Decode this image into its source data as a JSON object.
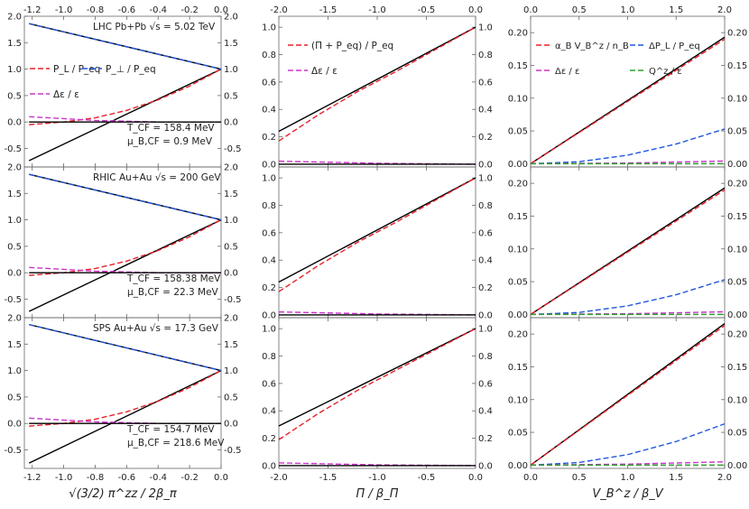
{
  "chart_data": [
    {
      "type": "line",
      "column": "left",
      "system": "LHC Pb+Pb",
      "energy": "5.02 TeV",
      "T_CF": "T_CF = 158.4 MeV",
      "mu_B": "μ_B,CF = 0.9 MeV",
      "xlim": [
        -1.25,
        0.0
      ],
      "ylim": [
        -0.85,
        2.0
      ],
      "legend": [
        "P_L / P_eq",
        "P_⊥ / P_eq",
        "Δε / ε"
      ],
      "series": [
        {
          "name": "P_L/P_eq exact",
          "color": "#000000",
          "dash": "solid",
          "x": [
            -1.22,
            0
          ],
          "y": [
            -0.73,
            1.0
          ]
        },
        {
          "name": "P_L/P_eq",
          "color": "#e8202b",
          "dash": "dashed",
          "x": [
            -1.22,
            -1.0,
            -0.8,
            -0.6,
            -0.4,
            -0.2,
            0
          ],
          "y": [
            -0.05,
            0.0,
            0.08,
            0.22,
            0.42,
            0.68,
            1.0
          ]
        },
        {
          "name": "P_perp/P_eq exact",
          "color": "#000000",
          "dash": "solid",
          "x": [
            -1.22,
            0
          ],
          "y": [
            1.86,
            1.0
          ]
        },
        {
          "name": "P_perp/P_eq",
          "color": "#2157e0",
          "dash": "dashed",
          "x": [
            -1.22,
            0
          ],
          "y": [
            1.86,
            1.0
          ]
        },
        {
          "name": "Δε/ε",
          "color": "#cc33cc",
          "dash": "dashed",
          "x": [
            -1.22,
            -0.8,
            -0.4,
            0
          ],
          "y": [
            0.1,
            0.03,
            0.0,
            0.0
          ]
        },
        {
          "name": "zero",
          "color": "#000000",
          "dash": "solid",
          "x": [
            -1.22,
            0
          ],
          "y": [
            0.0,
            0.0
          ]
        }
      ]
    },
    {
      "type": "line",
      "column": "left",
      "system": "RHIC Au+Au",
      "energy": "200 GeV",
      "T_CF": "T_CF = 158.38 MeV",
      "mu_B": "μ_B,CF = 22.3 MeV",
      "xlim": [
        -1.25,
        0.0
      ],
      "ylim": [
        -0.85,
        2.0
      ],
      "series": [
        {
          "name": "P_L/P_eq exact",
          "color": "#000000",
          "dash": "solid",
          "x": [
            -1.22,
            0
          ],
          "y": [
            -0.73,
            1.0
          ]
        },
        {
          "name": "P_L/P_eq",
          "color": "#e8202b",
          "dash": "dashed",
          "x": [
            -1.22,
            -1.0,
            -0.8,
            -0.6,
            -0.4,
            -0.2,
            0
          ],
          "y": [
            -0.05,
            0.0,
            0.08,
            0.22,
            0.42,
            0.68,
            1.0
          ]
        },
        {
          "name": "P_perp/P_eq exact",
          "color": "#000000",
          "dash": "solid",
          "x": [
            -1.22,
            0
          ],
          "y": [
            1.86,
            1.0
          ]
        },
        {
          "name": "P_perp/P_eq",
          "color": "#2157e0",
          "dash": "dashed",
          "x": [
            -1.22,
            0
          ],
          "y": [
            1.86,
            1.0
          ]
        },
        {
          "name": "Δε/ε",
          "color": "#cc33cc",
          "dash": "dashed",
          "x": [
            -1.22,
            -0.8,
            -0.4,
            0
          ],
          "y": [
            0.1,
            0.03,
            0.0,
            0.0
          ]
        },
        {
          "name": "zero",
          "color": "#000000",
          "dash": "solid",
          "x": [
            -1.22,
            0
          ],
          "y": [
            0.0,
            0.0
          ]
        }
      ]
    },
    {
      "type": "line",
      "column": "left",
      "system": "SPS Au+Au",
      "energy": "17.3 GeV",
      "T_CF": "T_CF = 154.7 MeV",
      "mu_B": "μ_B,CF = 218.6 MeV",
      "xlim": [
        -1.25,
        0.0
      ],
      "ylim": [
        -0.85,
        2.0
      ],
      "series": [
        {
          "name": "P_L/P_eq exact",
          "color": "#000000",
          "dash": "solid",
          "x": [
            -1.22,
            0
          ],
          "y": [
            -0.75,
            1.0
          ]
        },
        {
          "name": "P_L/P_eq",
          "color": "#e8202b",
          "dash": "dashed",
          "x": [
            -1.22,
            -1.0,
            -0.8,
            -0.6,
            -0.4,
            -0.2,
            0
          ],
          "y": [
            -0.05,
            0.0,
            0.08,
            0.22,
            0.42,
            0.68,
            1.0
          ]
        },
        {
          "name": "P_perp/P_eq exact",
          "color": "#000000",
          "dash": "solid",
          "x": [
            -1.22,
            0
          ],
          "y": [
            1.87,
            1.0
          ]
        },
        {
          "name": "P_perp/P_eq",
          "color": "#2157e0",
          "dash": "dashed",
          "x": [
            -1.22,
            0
          ],
          "y": [
            1.87,
            1.0
          ]
        },
        {
          "name": "Δε/ε",
          "color": "#cc33cc",
          "dash": "dashed",
          "x": [
            -1.22,
            -0.8,
            -0.4,
            0
          ],
          "y": [
            0.1,
            0.03,
            0.0,
            0.0
          ]
        },
        {
          "name": "zero",
          "color": "#000000",
          "dash": "solid",
          "x": [
            -1.22,
            0
          ],
          "y": [
            0.0,
            0.0
          ]
        }
      ]
    },
    {
      "type": "line",
      "column": "middle",
      "xlim": [
        -2.0,
        0.0
      ],
      "ylim": [
        -0.02,
        1.08
      ],
      "legend": [
        "(Π + P_eq) / P_eq",
        "Δε / ε"
      ],
      "series": [
        {
          "name": "exact",
          "color": "#000000",
          "dash": "solid",
          "x": [
            -2.0,
            0
          ],
          "y": [
            0.24,
            1.0
          ]
        },
        {
          "name": "(Π+P_eq)/P_eq",
          "color": "#e8202b",
          "dash": "dashed",
          "x": [
            -2.0,
            -1.6,
            -1.2,
            -0.8,
            -0.4,
            0
          ],
          "y": [
            0.17,
            0.36,
            0.53,
            0.68,
            0.84,
            1.0
          ]
        },
        {
          "name": "Δε/ε",
          "color": "#cc33cc",
          "dash": "dashed",
          "x": [
            -2.0,
            -1.0,
            0
          ],
          "y": [
            0.022,
            0.007,
            0.0
          ]
        },
        {
          "name": "zero",
          "color": "#000000",
          "dash": "solid",
          "x": [
            -2.0,
            0
          ],
          "y": [
            0.0,
            0.0
          ]
        }
      ]
    },
    {
      "type": "line",
      "column": "middle",
      "xlim": [
        -2.0,
        0.0
      ],
      "ylim": [
        -0.02,
        1.08
      ],
      "series": [
        {
          "name": "exact",
          "color": "#000000",
          "dash": "solid",
          "x": [
            -2.0,
            0
          ],
          "y": [
            0.24,
            1.0
          ]
        },
        {
          "name": "(Π+P_eq)/P_eq",
          "color": "#e8202b",
          "dash": "dashed",
          "x": [
            -2.0,
            -1.6,
            -1.2,
            -0.8,
            -0.4,
            0
          ],
          "y": [
            0.17,
            0.36,
            0.53,
            0.68,
            0.84,
            1.0
          ]
        },
        {
          "name": "Δε/ε",
          "color": "#cc33cc",
          "dash": "dashed",
          "x": [
            -2.0,
            -1.0,
            0
          ],
          "y": [
            0.022,
            0.007,
            0.0
          ]
        },
        {
          "name": "zero",
          "color": "#000000",
          "dash": "solid",
          "x": [
            -2.0,
            0
          ],
          "y": [
            0.0,
            0.0
          ]
        }
      ]
    },
    {
      "type": "line",
      "column": "middle",
      "xlim": [
        -2.0,
        0.0
      ],
      "ylim": [
        -0.02,
        1.08
      ],
      "xlabel": "Π / β_Π",
      "series": [
        {
          "name": "exact",
          "color": "#000000",
          "dash": "solid",
          "x": [
            -2.0,
            0
          ],
          "y": [
            0.29,
            1.0
          ]
        },
        {
          "name": "(Π+P_eq)/P_eq",
          "color": "#e8202b",
          "dash": "dashed",
          "x": [
            -2.0,
            -1.6,
            -1.2,
            -0.8,
            -0.4,
            0
          ],
          "y": [
            0.19,
            0.38,
            0.55,
            0.7,
            0.85,
            1.0
          ]
        },
        {
          "name": "Δε/ε",
          "color": "#cc33cc",
          "dash": "dashed",
          "x": [
            -2.0,
            -1.0,
            0
          ],
          "y": [
            0.02,
            0.006,
            0.0
          ]
        },
        {
          "name": "zero",
          "color": "#000000",
          "dash": "solid",
          "x": [
            -2.0,
            0
          ],
          "y": [
            0.0,
            0.0
          ]
        }
      ]
    },
    {
      "type": "line",
      "column": "right",
      "xlim": [
        0.0,
        2.0
      ],
      "ylim": [
        -0.005,
        0.225
      ],
      "legend": [
        "α_B V_B^z / n_B",
        "ΔP_L / P_eq",
        "Δε / ε",
        "Q^z / ε"
      ],
      "series": [
        {
          "name": "exact",
          "color": "#000000",
          "dash": "solid",
          "x": [
            0,
            2.0
          ],
          "y": [
            0.0,
            0.193
          ]
        },
        {
          "name": "α_B V_B^z/n_B",
          "color": "#e8202b",
          "dash": "dashed",
          "x": [
            0,
            2.0
          ],
          "y": [
            0.0,
            0.19
          ]
        },
        {
          "name": "ΔP_L/P_eq",
          "color": "#2157e0",
          "dash": "dashed",
          "x": [
            0,
            0.5,
            1.0,
            1.5,
            2.0
          ],
          "y": [
            0.0,
            0.003,
            0.013,
            0.03,
            0.053
          ]
        },
        {
          "name": "Δε/ε",
          "color": "#cc33cc",
          "dash": "dashed",
          "x": [
            0,
            1.0,
            2.0
          ],
          "y": [
            0.0,
            0.001,
            0.004
          ]
        },
        {
          "name": "Q^z/ε",
          "color": "#2ca02c",
          "dash": "dashed",
          "x": [
            0,
            2.0
          ],
          "y": [
            0.0,
            0.0
          ]
        }
      ]
    },
    {
      "type": "line",
      "column": "right",
      "xlim": [
        0.0,
        2.0
      ],
      "ylim": [
        -0.005,
        0.225
      ],
      "series": [
        {
          "name": "exact",
          "color": "#000000",
          "dash": "solid",
          "x": [
            0,
            2.0
          ],
          "y": [
            0.0,
            0.193
          ]
        },
        {
          "name": "α_B V_B^z/n_B",
          "color": "#e8202b",
          "dash": "dashed",
          "x": [
            0,
            2.0
          ],
          "y": [
            0.0,
            0.19
          ]
        },
        {
          "name": "ΔP_L/P_eq",
          "color": "#2157e0",
          "dash": "dashed",
          "x": [
            0,
            0.5,
            1.0,
            1.5,
            2.0
          ],
          "y": [
            0.0,
            0.003,
            0.013,
            0.03,
            0.053
          ]
        },
        {
          "name": "Δε/ε",
          "color": "#cc33cc",
          "dash": "dashed",
          "x": [
            0,
            1.0,
            2.0
          ],
          "y": [
            0.0,
            0.001,
            0.004
          ]
        },
        {
          "name": "Q^z/ε",
          "color": "#2ca02c",
          "dash": "dashed",
          "x": [
            0,
            2.0
          ],
          "y": [
            0.0,
            0.0
          ]
        }
      ]
    },
    {
      "type": "line",
      "column": "right",
      "xlim": [
        0.0,
        2.0
      ],
      "ylim": [
        -0.005,
        0.225
      ],
      "xlabel": "V_B^z / β_V",
      "series": [
        {
          "name": "exact",
          "color": "#000000",
          "dash": "solid",
          "x": [
            0,
            2.0
          ],
          "y": [
            0.0,
            0.216
          ]
        },
        {
          "name": "α_B V_B^z/n_B",
          "color": "#e8202b",
          "dash": "dashed",
          "x": [
            0,
            2.0
          ],
          "y": [
            0.0,
            0.213
          ]
        },
        {
          "name": "ΔP_L/P_eq",
          "color": "#2157e0",
          "dash": "dashed",
          "x": [
            0,
            0.5,
            1.0,
            1.5,
            2.0
          ],
          "y": [
            0.0,
            0.004,
            0.016,
            0.036,
            0.063
          ]
        },
        {
          "name": "Δε/ε",
          "color": "#cc33cc",
          "dash": "dashed",
          "x": [
            0,
            1.0,
            2.0
          ],
          "y": [
            0.0,
            0.0015,
            0.005
          ]
        },
        {
          "name": "Q^z/ε",
          "color": "#2ca02c",
          "dash": "dashed",
          "x": [
            0,
            2.0
          ],
          "y": [
            0.0,
            0.0
          ]
        }
      ]
    }
  ],
  "ticks": {
    "left_y": [
      -0.5,
      0.0,
      0.5,
      1.0,
      1.5,
      2.0
    ],
    "left_x": [
      -1.2,
      -1.0,
      -0.8,
      -0.6,
      -0.4,
      -0.2,
      0.0
    ],
    "mid_y": [
      0.0,
      0.2,
      0.4,
      0.6,
      0.8,
      1.0
    ],
    "mid_x": [
      -2.0,
      -1.5,
      -1.0,
      -0.5,
      0.0
    ],
    "right_y": [
      0.0,
      0.05,
      0.1,
      0.15,
      0.2
    ],
    "right_x": [
      0.0,
      0.5,
      1.0,
      1.5,
      2.0
    ]
  },
  "labels": {
    "left_xlabel": "√(3/2) π^zz / 2β_π",
    "mid_xlabel": "Π / β_Π",
    "right_xlabel": "V_B^z / β_V"
  }
}
